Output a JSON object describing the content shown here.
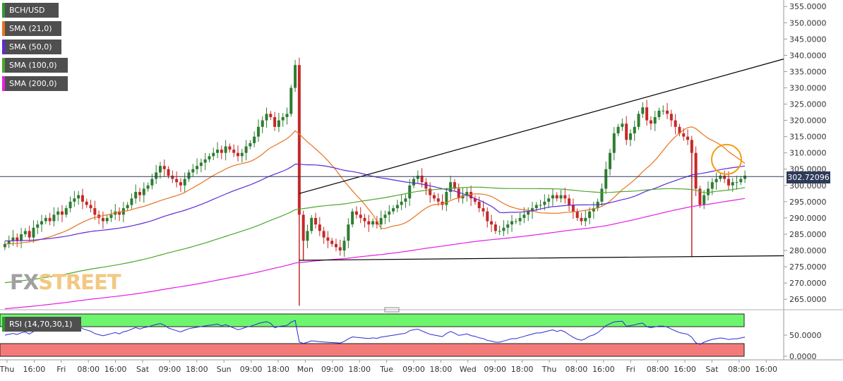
{
  "symbol": "BCH/USD",
  "watermark": {
    "fx": "FX",
    "street": "STREET"
  },
  "indicators": [
    {
      "label": "SMA (21,0)",
      "color": "#e8731e"
    },
    {
      "label": "SMA (50,0)",
      "color": "#5c2ad8"
    },
    {
      "label": "SMA (100,0)",
      "color": "#4ca82a"
    },
    {
      "label": "SMA (200,0)",
      "color": "#e61ee6"
    }
  ],
  "current_price_label": "302.72096",
  "rsi_label": "RSI (14,70,30,1)",
  "colors": {
    "up": "#2e7d32",
    "down": "#c62828",
    "rsi_line": "#2a2ad8",
    "rsi_overbought": "#6ef56e",
    "rsi_oversold": "#f47a7a",
    "trendline": "#000000"
  },
  "chart_data": {
    "type": "candlestick",
    "title": "BCH/USD",
    "y_ticks": [
      "355.0000",
      "350.0000",
      "345.0000",
      "340.0000",
      "335.0000",
      "330.0000",
      "325.0000",
      "320.0000",
      "315.0000",
      "310.0000",
      "305.0000",
      "300.0000",
      "295.0000",
      "290.0000",
      "285.0000",
      "280.0000",
      "275.0000",
      "270.0000",
      "265.0000"
    ],
    "ylim": [
      262,
      357
    ],
    "x_tick_labels": [
      "Thu",
      "16:00",
      "Fri",
      "08:00",
      "16:00",
      "Sat",
      "09:00",
      "18:00",
      "Sun",
      "09:00",
      "18:00",
      "Mon",
      "09:00",
      "18:00",
      "Tue",
      "09:00",
      "18:00",
      "Wed",
      "09:00",
      "18:00",
      "Thu",
      "08:00",
      "16:00",
      "Fri",
      "08:00",
      "16:00",
      "Sat",
      "08:00",
      "16:00"
    ],
    "current_price": 302.72096,
    "close": [
      282,
      283,
      284,
      283,
      285,
      286,
      284,
      287,
      288,
      289,
      290,
      289,
      291,
      292,
      291,
      293,
      295,
      296,
      297,
      295,
      294,
      293,
      291,
      290,
      289,
      290,
      291,
      292,
      291,
      293,
      294,
      296,
      298,
      297,
      299,
      300,
      302,
      304,
      306,
      305,
      303,
      302,
      301,
      300,
      302,
      304,
      305,
      306,
      307,
      308,
      309,
      310,
      311,
      310,
      312,
      311,
      310,
      309,
      310,
      312,
      313,
      315,
      318,
      320,
      322,
      321,
      318,
      320,
      321,
      322,
      330,
      337,
      291,
      283,
      286,
      290,
      288,
      286,
      284,
      283,
      282,
      281,
      280,
      283,
      288,
      292,
      291,
      290,
      289,
      288,
      289,
      288,
      290,
      291,
      292,
      293,
      294,
      295,
      296,
      300,
      302,
      303,
      301,
      299,
      297,
      296,
      295,
      294,
      298,
      301,
      299,
      296,
      297,
      298,
      296,
      295,
      293,
      292,
      289,
      288,
      286,
      286,
      287,
      288,
      289,
      289,
      290,
      291,
      292,
      293,
      294,
      294,
      295,
      296,
      297,
      296,
      297,
      296,
      294,
      292,
      290,
      289,
      290,
      292,
      293,
      295,
      299,
      305,
      310,
      316,
      318,
      319,
      314,
      316,
      318,
      322,
      324,
      320,
      319,
      321,
      323,
      323,
      322,
      320,
      318,
      316,
      315,
      314,
      310,
      299,
      294,
      297,
      299,
      301,
      302,
      303,
      302,
      300,
      301,
      301,
      302,
      303
    ],
    "rsi": {
      "overbought": 70,
      "oversold": 30,
      "ylim": [
        0,
        100
      ],
      "tick_labels": [
        "50.0000",
        "0.0000"
      ]
    },
    "sma_series": [
      "SMA (21,0)",
      "SMA (50,0)",
      "SMA (100,0)",
      "SMA (200,0)"
    ],
    "trendlines": [
      {
        "name": "upper",
        "from": {
          "bar": 72,
          "price": 297.5
        },
        "to": {
          "bar": 184,
          "price": 336.6
        }
      },
      {
        "name": "lower",
        "from": {
          "bar": 72,
          "price": 277.0
        },
        "to": {
          "bar": 184,
          "price": 278.3
        }
      }
    ]
  }
}
